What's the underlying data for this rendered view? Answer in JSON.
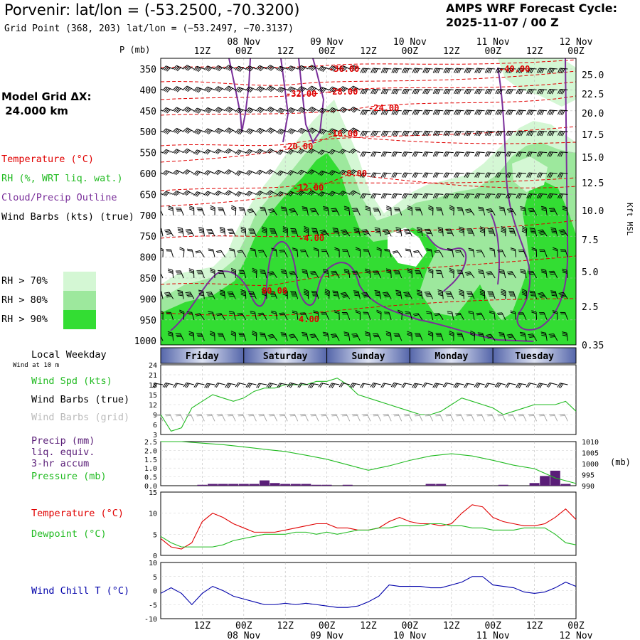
{
  "header": {
    "title": "Porvenir:  lat/lon = (-53.2500, -70.3200)",
    "grid_point": "Grid Point (368, 203) lat/lon = (−53.2497, −70.3137)",
    "cycle_line1": "AMPS WRF Forecast Cycle:",
    "cycle_line2": "2025-11-07 / 00  Z",
    "model_grid_line1": "Model Grid ΔX:",
    "model_grid_line2": " 24.000 km"
  },
  "colors": {
    "temperature": "#e00000",
    "rh": "#22bb22",
    "cloud": "#7a2f9a",
    "rh70": "#d4f7d4",
    "rh80": "#9de89d",
    "rh90": "#33dd33",
    "precip_bar": "#5a1e78",
    "windchill": "#0000aa",
    "grid_barbs": "#aaaaaa",
    "day_band_dark": "#5566aa",
    "day_band_light": "#dde2f2"
  },
  "time_axis": {
    "hour_labels": [
      "12Z",
      "00Z",
      "12Z",
      "00Z",
      "12Z",
      "00Z",
      "12Z",
      "00Z",
      "12Z",
      "00Z"
    ],
    "date_labels": [
      "08 Nov",
      "09 Nov",
      "10 Nov",
      "11 Nov",
      "12 Nov"
    ]
  },
  "left_legend": {
    "temperature": "Temperature (°C)",
    "rh": "RH (%, WRT liq. wat.)",
    "cloud": "Cloud/Precip Outline",
    "barbs": "Wind Barbs (kts) (true)",
    "rh70": "RH > 70%",
    "rh80": "RH > 80%",
    "rh90": "RH > 90%"
  },
  "upper_panel": {
    "p_label": "P (mb)",
    "kft_label": "Kft MSL",
    "pressure_ticks": [
      "350",
      "400",
      "450",
      "500",
      "550",
      "600",
      "650",
      "700",
      "750",
      "800",
      "850",
      "900",
      "950",
      "1000"
    ],
    "height_ticks": [
      "25.0",
      "22.5",
      "20.0",
      "17.5",
      "15.0",
      "12.5",
      "10.0",
      "7.5",
      "5.0",
      "2.5",
      "0.35"
    ],
    "temp_labels": [
      "-36.00",
      "-40.00",
      "-32.00",
      "-28.00",
      "-24.00",
      "-16.00",
      "-20.00",
      "-8.00",
      "-12.00",
      "-4.00",
      "00.00",
      "4.00"
    ]
  },
  "weekday": {
    "label": "Local Weekday",
    "days": [
      "Friday",
      "Saturday",
      "Sunday",
      "Monday",
      "Tuesday"
    ]
  },
  "wind_panel": {
    "subtitle": "Wind at 10 m",
    "spd_label": "Wind Spd (kts)",
    "barbs_true": "Wind Barbs (true)",
    "barbs_grid": "Wind Barbs (grid)",
    "y_ticks": [
      "24",
      "21",
      "18",
      "15",
      "12",
      "9",
      "6",
      "3"
    ]
  },
  "precip_panel": {
    "label1": "Precip (mm)",
    "label2": "liq. equiv.",
    "label3": "3-hr accum",
    "label4": "Pressure (mb)",
    "left_ticks": [
      "2.5",
      "2.0",
      "1.5",
      "1.0",
      "0.5",
      "0.0"
    ],
    "right_ticks": [
      "1010",
      "1005",
      "1000",
      "995",
      "990"
    ],
    "right_unit": "(mb)"
  },
  "temp_panel": {
    "temp_label": "Temperature (°C)",
    "dew_label": "Dewpoint (°C)",
    "ticks": [
      "15",
      "10",
      "5",
      "0"
    ]
  },
  "chill_panel": {
    "label": "Wind Chill T (°C)",
    "ticks": [
      "10",
      "5",
      "0",
      "-5",
      "-10"
    ]
  },
  "chart_data": [
    {
      "type": "line",
      "title": "Wind Speed at 10 m (kts)",
      "x": [
        0,
        3,
        6,
        9,
        12,
        15,
        18,
        21,
        24,
        27,
        30,
        33,
        36,
        39,
        42,
        45,
        48,
        51,
        54,
        57,
        60,
        63,
        66,
        69,
        72,
        75,
        78,
        81,
        84,
        87,
        90,
        93,
        96,
        99,
        102,
        105,
        108,
        111,
        114,
        117,
        120
      ],
      "series": [
        {
          "name": "Wind Spd (kts)",
          "values": [
            9,
            4,
            5,
            11,
            13,
            15,
            14,
            13,
            14,
            16,
            17,
            17,
            18,
            18,
            18,
            19,
            19,
            20,
            18,
            15,
            14,
            13,
            12,
            11,
            10,
            9,
            9,
            10,
            12,
            14,
            13,
            12,
            11,
            9,
            10,
            11,
            12,
            12,
            12,
            13,
            10
          ]
        }
      ],
      "ylim": [
        3,
        24
      ]
    },
    {
      "type": "bar",
      "title": "Precip (mm) 3-hr accum",
      "x": [
        0,
        3,
        6,
        9,
        12,
        15,
        18,
        21,
        24,
        27,
        30,
        33,
        36,
        39,
        42,
        45,
        48,
        51,
        54,
        57,
        60,
        63,
        66,
        69,
        72,
        75,
        78,
        81,
        84,
        87,
        90,
        93,
        96,
        99,
        102,
        105,
        108,
        111,
        114,
        117,
        120
      ],
      "values": [
        0,
        0,
        0,
        0,
        0.05,
        0.1,
        0.1,
        0.1,
        0.1,
        0.1,
        0.3,
        0.15,
        0.1,
        0.1,
        0.1,
        0.05,
        0.05,
        0,
        0.05,
        0,
        0,
        0,
        0,
        0,
        0,
        0,
        0.1,
        0.1,
        0,
        0,
        0,
        0,
        0,
        0.05,
        0,
        0,
        0.15,
        0.55,
        0.85,
        0.1,
        0
      ],
      "ylim": [
        0,
        2.5
      ]
    },
    {
      "type": "line",
      "title": "Sea-level Pressure (mb)",
      "x": [
        0,
        6,
        12,
        18,
        24,
        30,
        36,
        42,
        48,
        54,
        60,
        66,
        72,
        78,
        84,
        90,
        96,
        102,
        108,
        114,
        120
      ],
      "series": [
        {
          "name": "Pressure (mb)",
          "values": [
            1010,
            1010,
            1009.3,
            1008.6,
            1007.6,
            1006.5,
            1005.5,
            1003.8,
            1002,
            999.5,
            997,
            999,
            1001.5,
            1003.5,
            1004.5,
            1003.5,
            1001.5,
            999.3,
            997.7,
            993.5,
            991
          ]
        }
      ],
      "ylim": [
        990,
        1010
      ]
    },
    {
      "type": "line",
      "title": "Temperature and Dewpoint (°C)",
      "x": [
        0,
        3,
        6,
        9,
        12,
        15,
        18,
        21,
        24,
        27,
        30,
        33,
        36,
        39,
        42,
        45,
        48,
        51,
        54,
        57,
        60,
        63,
        66,
        69,
        72,
        75,
        78,
        81,
        84,
        87,
        90,
        93,
        96,
        99,
        102,
        105,
        108,
        111,
        114,
        117,
        120
      ],
      "series": [
        {
          "name": "Temperature (°C)",
          "values": [
            4,
            2,
            1.5,
            3,
            8,
            10,
            9,
            7.5,
            6.5,
            5.5,
            5.5,
            5.5,
            6,
            6.5,
            7,
            7.5,
            7.5,
            6.5,
            6.5,
            6,
            6,
            6.5,
            8,
            9,
            8,
            7.5,
            7.5,
            7,
            7.5,
            10,
            12,
            11.5,
            9,
            8,
            7.5,
            7,
            7,
            7.5,
            9,
            11,
            8.5
          ]
        },
        {
          "name": "Dewpoint (°C)",
          "values": [
            4.5,
            3,
            2,
            2,
            2,
            2,
            2.5,
            3.5,
            4,
            4.5,
            5,
            5,
            5,
            5.5,
            5.5,
            5,
            5.5,
            5,
            5.5,
            6,
            6,
            6.5,
            6.5,
            7,
            7,
            7,
            7.5,
            7.5,
            7,
            7,
            6.5,
            6.5,
            6,
            6,
            6,
            6.5,
            6.5,
            6.5,
            5,
            3,
            2.5
          ]
        }
      ],
      "ylim": [
        0,
        15
      ]
    },
    {
      "type": "line",
      "title": "Wind Chill T (°C)",
      "x": [
        0,
        3,
        6,
        9,
        12,
        15,
        18,
        21,
        24,
        27,
        30,
        33,
        36,
        39,
        42,
        45,
        48,
        51,
        54,
        57,
        60,
        63,
        66,
        69,
        72,
        75,
        78,
        81,
        84,
        87,
        90,
        93,
        96,
        99,
        102,
        105,
        108,
        111,
        114,
        117,
        120
      ],
      "series": [
        {
          "name": "Wind Chill T (°C)",
          "values": [
            -1,
            1,
            -1,
            -5,
            -1,
            1.5,
            0,
            -2,
            -3,
            -4,
            -5,
            -5,
            -4.5,
            -5,
            -4.5,
            -5,
            -5.5,
            -6,
            -6,
            -5.5,
            -4,
            -2,
            2,
            1.5,
            1.5,
            1.5,
            1,
            1,
            2,
            3,
            5,
            5,
            2,
            1.5,
            1,
            -0.5,
            -1,
            -0.5,
            1,
            3,
            1.5
          ]
        }
      ],
      "ylim": [
        -10,
        10
      ]
    }
  ]
}
